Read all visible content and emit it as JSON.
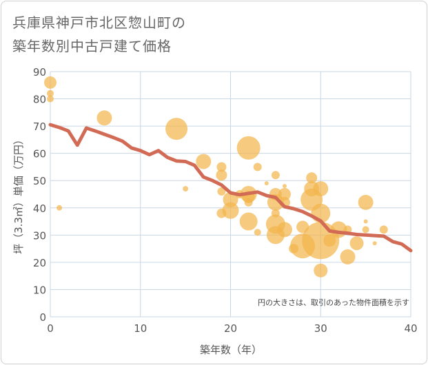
{
  "title_lines": [
    "兵庫県神戸市北区惣山町の",
    "築年数別中古戸建て価格"
  ],
  "chart_data": {
    "type": "scatter",
    "title": "兵庫県神戸市北区惣山町の築年数別中古戸建て価格",
    "xlabel": "築年数（年）",
    "ylabel": "坪（3.3㎡）単価（万円）",
    "xlim": [
      0,
      40
    ],
    "ylim": [
      0,
      90
    ],
    "x_ticks": [
      0,
      10,
      20,
      30,
      40
    ],
    "y_ticks": [
      0,
      10,
      20,
      30,
      40,
      50,
      60,
      70,
      80,
      90
    ],
    "grid": true,
    "note": "円の大きさは、取引のあった物件面積を示す",
    "colors": {
      "bubble": "#f2b54e",
      "line": "#d26b55",
      "grid": "#c9d6e4"
    },
    "bubbles": [
      {
        "x": 0,
        "y": 86,
        "s": 9
      },
      {
        "x": 0,
        "y": 82,
        "s": 5
      },
      {
        "x": 0,
        "y": 80,
        "s": 5
      },
      {
        "x": 1,
        "y": 40,
        "s": 4
      },
      {
        "x": 6,
        "y": 73,
        "s": 11
      },
      {
        "x": 14,
        "y": 69,
        "s": 16
      },
      {
        "x": 15,
        "y": 47,
        "s": 4
      },
      {
        "x": 17,
        "y": 57,
        "s": 11
      },
      {
        "x": 19,
        "y": 55,
        "s": 7
      },
      {
        "x": 19,
        "y": 52,
        "s": 8
      },
      {
        "x": 19,
        "y": 46,
        "s": 6
      },
      {
        "x": 19,
        "y": 38,
        "s": 7
      },
      {
        "x": 20,
        "y": 43,
        "s": 11
      },
      {
        "x": 20,
        "y": 39,
        "s": 12
      },
      {
        "x": 21,
        "y": 45,
        "s": 6
      },
      {
        "x": 22,
        "y": 62,
        "s": 17
      },
      {
        "x": 22,
        "y": 45,
        "s": 12
      },
      {
        "x": 22,
        "y": 44,
        "s": 9
      },
      {
        "x": 22,
        "y": 42,
        "s": 6
      },
      {
        "x": 22,
        "y": 35,
        "s": 13
      },
      {
        "x": 23,
        "y": 55,
        "s": 6
      },
      {
        "x": 23,
        "y": 31,
        "s": 5
      },
      {
        "x": 24,
        "y": 49,
        "s": 3
      },
      {
        "x": 25,
        "y": 52,
        "s": 6
      },
      {
        "x": 25,
        "y": 45,
        "s": 9
      },
      {
        "x": 25,
        "y": 42,
        "s": 12
      },
      {
        "x": 25,
        "y": 38,
        "s": 6
      },
      {
        "x": 25,
        "y": 34,
        "s": 14
      },
      {
        "x": 25,
        "y": 30,
        "s": 13
      },
      {
        "x": 26,
        "y": 48,
        "s": 3
      },
      {
        "x": 26,
        "y": 45,
        "s": 9
      },
      {
        "x": 26,
        "y": 42,
        "s": 8
      },
      {
        "x": 26,
        "y": 32,
        "s": 11
      },
      {
        "x": 27,
        "y": 25,
        "s": 7
      },
      {
        "x": 28,
        "y": 33,
        "s": 9
      },
      {
        "x": 28,
        "y": 26,
        "s": 18
      },
      {
        "x": 29,
        "y": 51,
        "s": 8
      },
      {
        "x": 29,
        "y": 47,
        "s": 11
      },
      {
        "x": 29,
        "y": 43,
        "s": 16
      },
      {
        "x": 30,
        "y": 47,
        "s": 11
      },
      {
        "x": 30,
        "y": 38,
        "s": 14
      },
      {
        "x": 30,
        "y": 28,
        "s": 27
      },
      {
        "x": 30,
        "y": 17,
        "s": 10
      },
      {
        "x": 31,
        "y": 28,
        "s": 9
      },
      {
        "x": 32,
        "y": 32,
        "s": 12
      },
      {
        "x": 33,
        "y": 32,
        "s": 6
      },
      {
        "x": 33,
        "y": 22,
        "s": 11
      },
      {
        "x": 34,
        "y": 27,
        "s": 10
      },
      {
        "x": 35,
        "y": 42,
        "s": 11
      },
      {
        "x": 35,
        "y": 35,
        "s": 3
      },
      {
        "x": 35,
        "y": 32,
        "s": 5
      },
      {
        "x": 36,
        "y": 27,
        "s": 3
      },
      {
        "x": 37,
        "y": 32,
        "s": 6
      }
    ],
    "trend": [
      {
        "x": 0,
        "y": 70.5
      },
      {
        "x": 1,
        "y": 69.5
      },
      {
        "x": 2,
        "y": 68.2
      },
      {
        "x": 3,
        "y": 63
      },
      {
        "x": 4,
        "y": 69.3
      },
      {
        "x": 5,
        "y": 68.2
      },
      {
        "x": 6,
        "y": 67
      },
      {
        "x": 7,
        "y": 65.8
      },
      {
        "x": 8,
        "y": 64.5
      },
      {
        "x": 9,
        "y": 62
      },
      {
        "x": 10,
        "y": 61
      },
      {
        "x": 11,
        "y": 59.5
      },
      {
        "x": 12,
        "y": 61
      },
      {
        "x": 13,
        "y": 58.5
      },
      {
        "x": 14,
        "y": 57.2
      },
      {
        "x": 15,
        "y": 57
      },
      {
        "x": 16,
        "y": 55.6
      },
      {
        "x": 17,
        "y": 51.3
      },
      {
        "x": 18,
        "y": 50
      },
      {
        "x": 19,
        "y": 48.4
      },
      {
        "x": 20,
        "y": 45.5
      },
      {
        "x": 21,
        "y": 44.8
      },
      {
        "x": 22,
        "y": 45.3
      },
      {
        "x": 23,
        "y": 45.8
      },
      {
        "x": 24,
        "y": 44.5
      },
      {
        "x": 25,
        "y": 43.8
      },
      {
        "x": 26,
        "y": 40.4
      },
      {
        "x": 27,
        "y": 39.7
      },
      {
        "x": 28,
        "y": 38.6
      },
      {
        "x": 29,
        "y": 37
      },
      {
        "x": 30,
        "y": 35.2
      },
      {
        "x": 31,
        "y": 31.5
      },
      {
        "x": 32,
        "y": 31
      },
      {
        "x": 33,
        "y": 30.7
      },
      {
        "x": 34,
        "y": 30.2
      },
      {
        "x": 35,
        "y": 30
      },
      {
        "x": 36,
        "y": 29.8
      },
      {
        "x": 37,
        "y": 29.6
      },
      {
        "x": 38,
        "y": 27.6
      },
      {
        "x": 39,
        "y": 26.7
      },
      {
        "x": 40,
        "y": 24.3
      }
    ]
  }
}
